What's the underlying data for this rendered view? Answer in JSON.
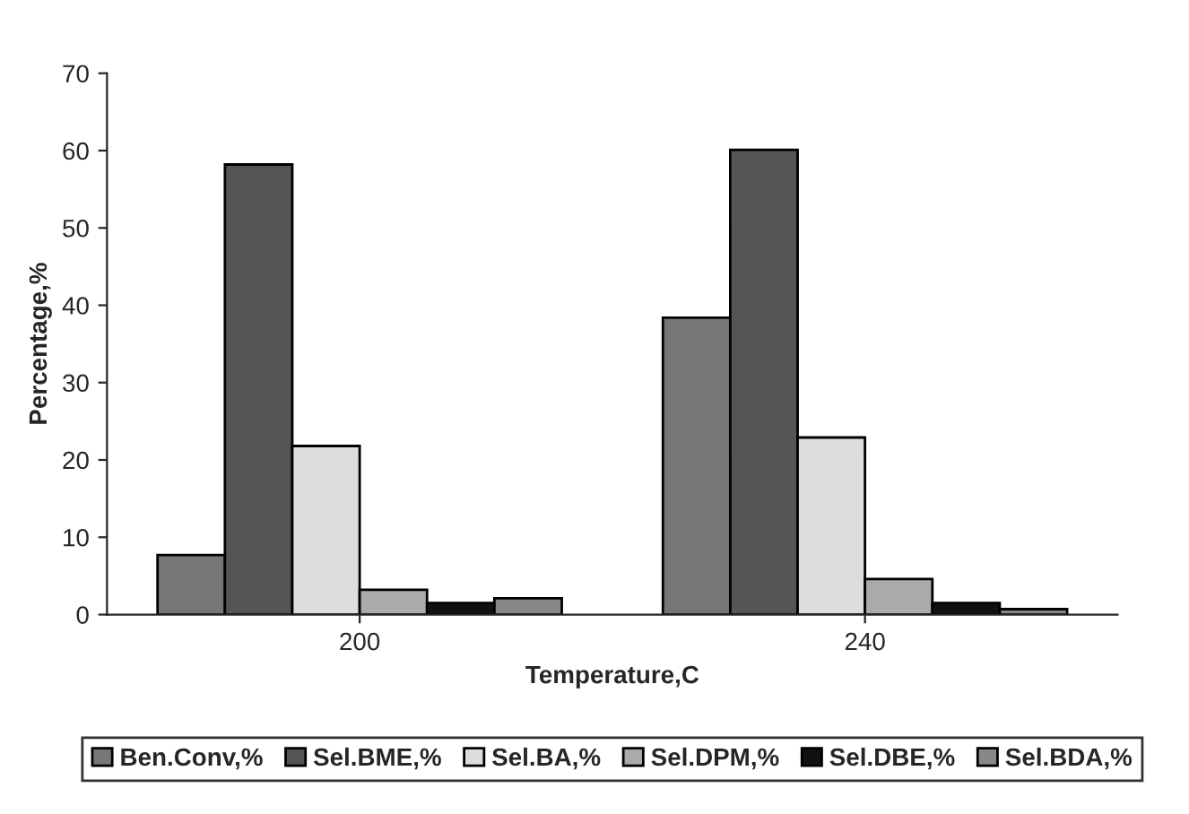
{
  "chart_data": {
    "type": "bar",
    "xlabel": "Temperature,C",
    "ylabel": "Percentage,%",
    "categories": [
      "200",
      "240"
    ],
    "series": [
      {
        "name": "Ben.Conv,%",
        "color": "#777777",
        "values": [
          7.7,
          38.4
        ]
      },
      {
        "name": "Sel.BME,%",
        "color": "#555555",
        "values": [
          58.2,
          60.1
        ]
      },
      {
        "name": "Sel.BA,%",
        "color": "#dddddd",
        "values": [
          21.8,
          22.9
        ]
      },
      {
        "name": "Sel.DPM,%",
        "color": "#aaaaaa",
        "values": [
          3.2,
          4.6
        ]
      },
      {
        "name": "Sel.DBE,%",
        "color": "#111111",
        "values": [
          1.5,
          1.5
        ]
      },
      {
        "name": "Sel.BDA,%",
        "color": "#888888",
        "values": [
          2.1,
          0.7
        ]
      }
    ],
    "ylim": [
      0,
      70
    ],
    "yticks": [
      0,
      10,
      20,
      30,
      40,
      50,
      60,
      70
    ],
    "grid": false,
    "legend": "bottom"
  }
}
